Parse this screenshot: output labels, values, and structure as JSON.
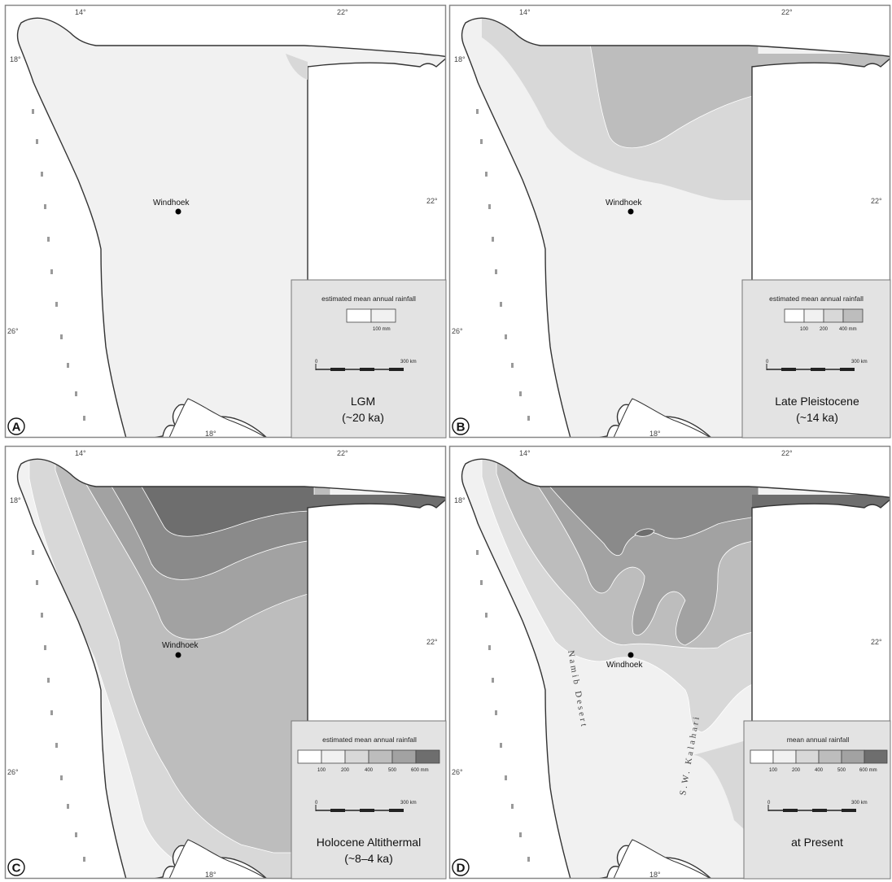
{
  "colors": {
    "background": "#ffffff",
    "land_base": "#f1f1f1",
    "class_1": "#f1f1f1",
    "class_2": "#d8d8d8",
    "class_3": "#bdbdbd",
    "class_4": "#a2a2a2",
    "class_5": "#8a8a8a",
    "class_6": "#6e6e6e",
    "legend_box": "#e3e3e3",
    "outline": "#333333"
  },
  "city": {
    "name": "Windhoek"
  },
  "panels": [
    {
      "letter": "A",
      "period_line1": "LGM",
      "period_line2": "(~20 ka)",
      "legend_title": "estimated mean annual rainfall",
      "legend_labels": [
        "100 mm"
      ],
      "legend_swatches": [
        "#ffffff",
        "#f1f1f1"
      ],
      "scale_bar_text": "300 km",
      "ticks": {
        "lon_left": "14°",
        "lon_right": "22°",
        "lat_top": "18°",
        "lat_mid": "22°",
        "lat_low": "26°",
        "lon_bottom": "18°"
      }
    },
    {
      "letter": "B",
      "period_line1": "Late Pleistocene",
      "period_line2": "(~14 ka)",
      "legend_title": "estimated mean annual rainfall",
      "legend_labels": [
        "100",
        "200",
        "400 mm"
      ],
      "legend_swatches": [
        "#ffffff",
        "#f1f1f1",
        "#d8d8d8",
        "#bdbdbd"
      ],
      "scale_bar_text": "300 km",
      "ticks": {
        "lon_left": "14°",
        "lon_right": "22°",
        "lat_top": "18°",
        "lat_mid": "22°",
        "lat_low": "26°",
        "lon_bottom": "18°"
      }
    },
    {
      "letter": "C",
      "period_line1": "Holocene Altithermal",
      "period_line2": "(~8–4 ka)",
      "legend_title": "estimated mean annual rainfall",
      "legend_labels": [
        "100",
        "200",
        "400",
        "500",
        "600 mm"
      ],
      "legend_swatches": [
        "#ffffff",
        "#f1f1f1",
        "#d8d8d8",
        "#bdbdbd",
        "#a2a2a2",
        "#6e6e6e"
      ],
      "scale_bar_text": "300 km",
      "ticks": {
        "lon_left": "14°",
        "lon_right": "22°",
        "lat_top": "18°",
        "lat_mid": "22°",
        "lat_low": "26°",
        "lon_bottom": "18°"
      }
    },
    {
      "letter": "D",
      "period_line1": "at Present",
      "period_line2": "",
      "legend_title": "mean annual rainfall",
      "legend_labels": [
        "100",
        "200",
        "400",
        "500",
        "600 mm"
      ],
      "legend_swatches": [
        "#ffffff",
        "#f1f1f1",
        "#d8d8d8",
        "#bdbdbd",
        "#a2a2a2",
        "#6e6e6e"
      ],
      "scale_bar_text": "300 km",
      "region_label_1": "Namib Desert",
      "region_label_2": "S.W. Kalahari",
      "ticks": {
        "lon_left": "14°",
        "lon_right": "22°",
        "lat_top": "18°",
        "lat_mid": "22°",
        "lat_low": "26°",
        "lon_bottom": "18°"
      }
    }
  ]
}
